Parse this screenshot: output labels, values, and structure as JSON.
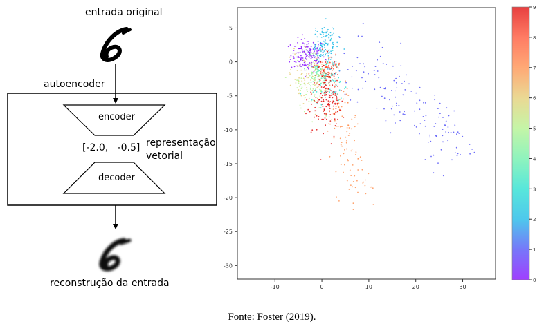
{
  "diagram": {
    "top_label": "entrada original",
    "box_label": "autoencoder",
    "encoder_label": "encoder",
    "decoder_label": "decoder",
    "vector_text": "[-2.0,   -0.5]",
    "representation_line1": "representação",
    "representation_line2": "vetorial",
    "bottom_label": "reconstrução da entrada"
  },
  "caption": "Fonte: Foster (2019).",
  "chart_data": {
    "type": "scatter",
    "title": "",
    "xlabel": "",
    "ylabel": "",
    "xlim": [
      -18,
      37
    ],
    "ylim": [
      -32,
      8
    ],
    "xticks": [
      -10,
      0,
      10,
      20,
      30
    ],
    "yticks": [
      5,
      0,
      -5,
      -10,
      -15,
      -20,
      -25,
      -30
    ],
    "grid": false,
    "colormap": "rainbow",
    "colorbar": {
      "min": 0,
      "max": 9,
      "ticks": [
        0,
        1,
        2,
        3,
        4,
        5,
        6,
        7,
        8,
        9
      ]
    },
    "clusters": [
      {
        "digit": 0,
        "color": "#8000ff",
        "center": [
          -3.0,
          1.0
        ],
        "spread": [
          1.8,
          1.2
        ],
        "count": 160
      },
      {
        "digit": 1,
        "color": "#4a4af8",
        "center": [
          12.0,
          -3.5
        ],
        "spread": [
          7.0,
          4.5
        ],
        "count": 150
      },
      {
        "digit": 2,
        "color": "#14b6e6",
        "center": [
          0.5,
          2.5
        ],
        "spread": [
          1.3,
          1.6
        ],
        "count": 140
      },
      {
        "digit": 3,
        "color": "#20dfcf",
        "center": [
          1.5,
          -3.0
        ],
        "spread": [
          1.5,
          2.0
        ],
        "count": 80
      },
      {
        "digit": 4,
        "color": "#6af0a8",
        "center": [
          -1.0,
          -1.5
        ],
        "spread": [
          1.5,
          1.5
        ],
        "count": 70
      },
      {
        "digit": 5,
        "color": "#b2f28a",
        "center": [
          -2.0,
          -3.0
        ],
        "spread": [
          2.0,
          2.0
        ],
        "count": 80
      },
      {
        "digit": 6,
        "color": "#e4cc70",
        "center": [
          -3.0,
          -2.5
        ],
        "spread": [
          2.0,
          2.0
        ],
        "count": 80
      },
      {
        "digit": 7,
        "color": "#ff8c48",
        "center": [
          4.0,
          -7.0
        ],
        "spread": [
          3.0,
          4.0
        ],
        "count": 120
      },
      {
        "digit": 8,
        "color": "#ff5030",
        "center": [
          1.0,
          -1.0
        ],
        "spread": [
          1.2,
          1.0
        ],
        "count": 70
      },
      {
        "digit": 9,
        "color": "#e00000",
        "center": [
          1.0,
          -5.0
        ],
        "spread": [
          1.5,
          2.5
        ],
        "count": 170
      }
    ]
  }
}
